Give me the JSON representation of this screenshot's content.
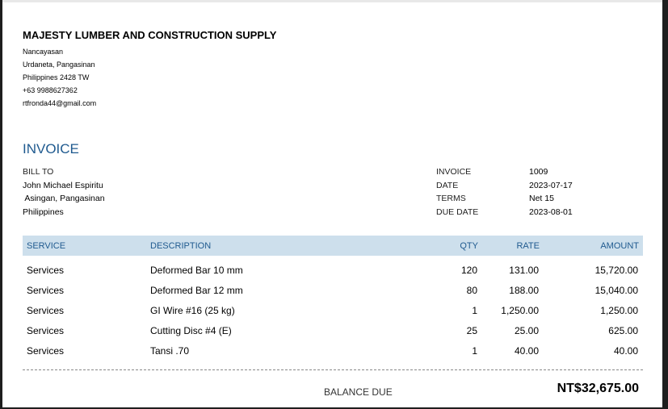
{
  "company": {
    "name": "MAJESTY LUMBER AND CONSTRUCTION SUPPLY",
    "address": [
      "Nancayasan",
      "Urdaneta, Pangasinan",
      "Philippines  2428 TW",
      "+63 9988627362",
      "rtfronda44@gmail.com"
    ]
  },
  "title": "INVOICE",
  "bill_to": {
    "label": "BILL TO",
    "lines": [
      "John Michael Espiritu",
      " Asingan, Pangasinan",
      "Philippines"
    ]
  },
  "meta": [
    {
      "label": "INVOICE",
      "value": "1009"
    },
    {
      "label": "DATE",
      "value": "2023-07-17"
    },
    {
      "label": "TERMS",
      "value": "Net 15"
    },
    {
      "label": "DUE DATE",
      "value": "2023-08-01"
    }
  ],
  "table": {
    "headers": [
      "SERVICE",
      "DESCRIPTION",
      "QTY",
      "RATE",
      "AMOUNT"
    ],
    "rows": [
      [
        "Services",
        "Deformed Bar 10 mm",
        "120",
        "131.00",
        "15,720.00"
      ],
      [
        "Services",
        "Deformed Bar 12 mm",
        "80",
        "188.00",
        "15,040.00"
      ],
      [
        "Services",
        "GI Wire #16 (25 kg)",
        "1",
        "1,250.00",
        "1,250.00"
      ],
      [
        "Services",
        "Cutting Disc #4 (E)",
        "25",
        "25.00",
        "625.00"
      ],
      [
        "Services",
        "Tansi .70",
        "1",
        "40.00",
        "40.00"
      ]
    ]
  },
  "balance": {
    "label": "BALANCE DUE",
    "value": "NT$32,675.00"
  }
}
